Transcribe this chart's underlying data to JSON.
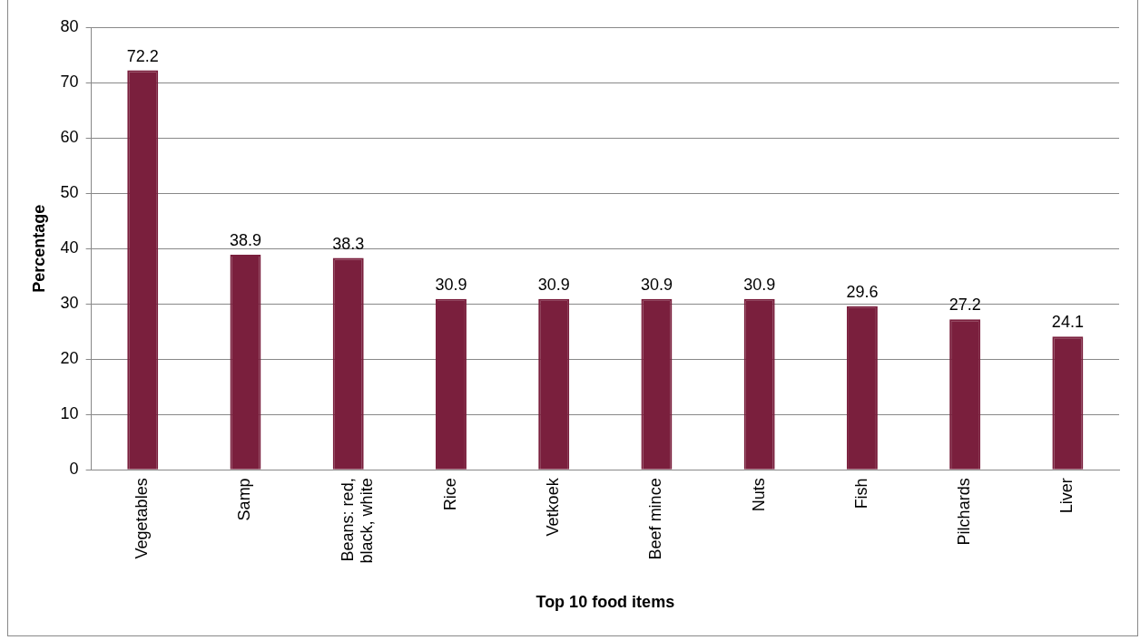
{
  "chart_data": {
    "type": "bar",
    "xlabel": "Top 10 food items",
    "ylabel": "Percentage",
    "categories": [
      "Vegetables",
      "Samp",
      "Beans: red, black, white",
      "Rice",
      "Vetkoek",
      "Beef mince",
      "Nuts",
      "Fish",
      "Pilchards",
      "Liver"
    ],
    "values": [
      72.2,
      38.9,
      38.3,
      30.9,
      30.9,
      30.9,
      30.9,
      29.6,
      27.2,
      24.1
    ],
    "color": "#7a1f3d",
    "ylim": [
      0,
      80
    ],
    "yticks": [
      0,
      10,
      20,
      30,
      40,
      50,
      60,
      70,
      80
    ],
    "grid": "y",
    "legend": false,
    "data_labels": true
  }
}
